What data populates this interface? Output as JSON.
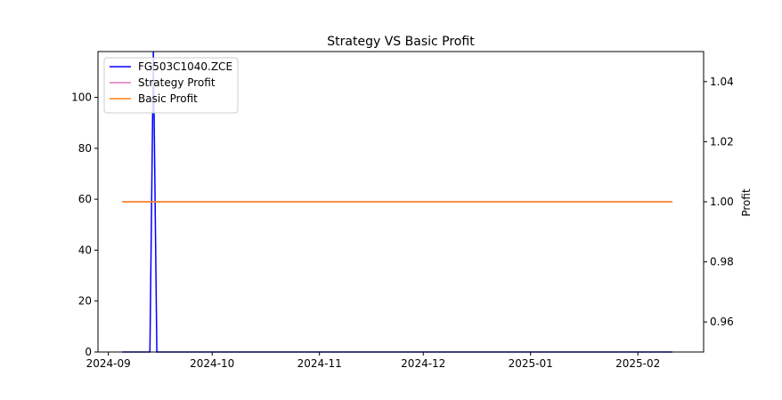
{
  "chart_data": {
    "type": "line",
    "title": "Strategy VS Basic Profit",
    "xlabel": "",
    "ylabel_left": "",
    "ylabel_right": "Profit",
    "x_ticks": [
      "2024-09",
      "2024-10",
      "2024-11",
      "2024-12",
      "2025-01",
      "2025-02"
    ],
    "y_left_ticks": [
      0,
      20,
      40,
      60,
      80,
      100
    ],
    "y_right_ticks": [
      0.96,
      0.98,
      1.0,
      1.02,
      1.04
    ],
    "y_right_tick_labels": [
      "0.96",
      "0.98",
      "1.00",
      "1.02",
      "1.04"
    ],
    "xlim": [
      "2024-08-29",
      "2025-02-20"
    ],
    "ylim_left": [
      0,
      118
    ],
    "ylim_right": [
      0.95,
      1.05
    ],
    "legend_position": "top-left",
    "grid": false,
    "series": [
      {
        "name": "FG503C1040.ZCE",
        "axis": "left",
        "color": "#0000ff",
        "points": [
          [
            "2024-09-05",
            0
          ],
          [
            "2024-09-13",
            0
          ],
          [
            "2024-09-14",
            118
          ],
          [
            "2024-09-15",
            0
          ],
          [
            "2025-02-11",
            0
          ]
        ]
      },
      {
        "name": "Strategy Profit",
        "axis": "right",
        "color": "#e377c2",
        "points": [
          [
            "2024-09-05",
            1.0
          ],
          [
            "2025-02-11",
            1.0
          ]
        ]
      },
      {
        "name": "Basic Profit",
        "axis": "right",
        "color": "#ff7f0e",
        "points": [
          [
            "2024-09-05",
            1.0
          ],
          [
            "2025-02-11",
            1.0
          ]
        ]
      }
    ]
  }
}
